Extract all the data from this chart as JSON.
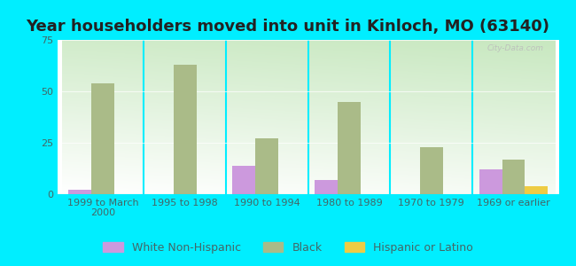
{
  "title": "Year householders moved into unit in Kinloch, MO (63140)",
  "categories": [
    "1999 to March\n2000",
    "1995 to 1998",
    "1990 to 1994",
    "1980 to 1989",
    "1970 to 1979",
    "1969 or earlier"
  ],
  "white_non_hispanic": [
    2,
    0,
    14,
    7,
    0,
    12
  ],
  "black": [
    54,
    63,
    27,
    45,
    23,
    17
  ],
  "hispanic_or_latino": [
    0,
    0,
    0,
    0,
    0,
    4
  ],
  "white_color": "#cc99dd",
  "black_color": "#aabb88",
  "hispanic_color": "#eecc44",
  "background_color": "#00eeff",
  "ylim": [
    0,
    75
  ],
  "yticks": [
    0,
    25,
    50,
    75
  ],
  "bar_width": 0.28,
  "title_fontsize": 13,
  "tick_fontsize": 8,
  "legend_fontsize": 9
}
